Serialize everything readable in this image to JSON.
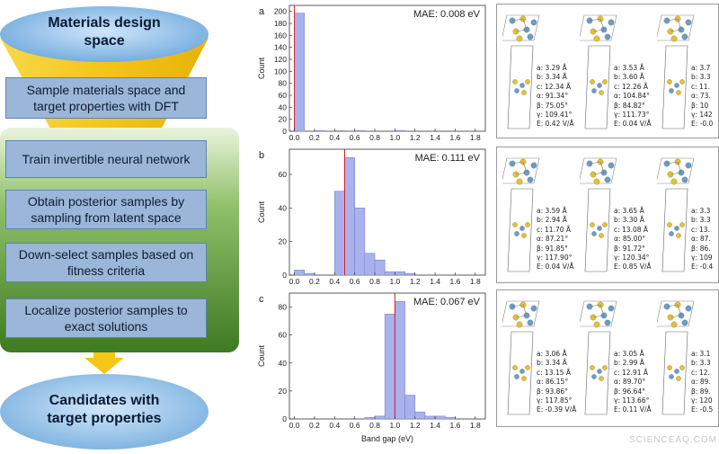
{
  "workflow": {
    "top_label": "Materials design space",
    "steps": [
      "Sample materials space and target properties with DFT",
      "Train invertible neural network",
      "Obtain posterior samples by sampling from latent space",
      "Down-select samples based on fitness criteria",
      "Localize posterior samples to exact solutions"
    ],
    "bottom_label": "Candidates with target properties"
  },
  "chart_data": [
    {
      "type": "bar",
      "panel_label": "a",
      "annotation": "MAE: 0.008 eV",
      "xlabel": "",
      "ylabel": "Count",
      "xlim": [
        -0.05,
        1.9
      ],
      "ylim": [
        0,
        210
      ],
      "xticks": [
        "0.0",
        "0.2",
        "0.4",
        "0.6",
        "0.8",
        "1.0",
        "1.2",
        "1.4",
        "1.6",
        "1.8"
      ],
      "yticks": [
        "0",
        "20",
        "40",
        "60",
        "80",
        "100",
        "120",
        "140",
        "160",
        "180",
        "200"
      ],
      "bin_width": 0.1,
      "bins": [
        0.0,
        0.1,
        0.2,
        0.3,
        0.4,
        0.5,
        0.6,
        0.7,
        0.8,
        0.9,
        1.0,
        1.1,
        1.2
      ],
      "values": [
        197,
        0,
        1,
        0,
        1,
        0,
        1,
        0,
        0,
        0,
        1,
        0,
        0
      ],
      "target": 0.0
    },
    {
      "type": "bar",
      "panel_label": "b",
      "annotation": "MAE: 0.111 eV",
      "xlabel": "",
      "ylabel": "Count",
      "xlim": [
        -0.05,
        1.9
      ],
      "ylim": [
        0,
        75
      ],
      "xticks": [
        "0.0",
        "0.2",
        "0.4",
        "0.6",
        "0.8",
        "1.0",
        "1.2",
        "1.4",
        "1.6",
        "1.8"
      ],
      "yticks": [
        "0",
        "20",
        "40",
        "60"
      ],
      "bin_width": 0.1,
      "bins": [
        0.0,
        0.1,
        0.2,
        0.3,
        0.4,
        0.5,
        0.6,
        0.7,
        0.8,
        0.9,
        1.0,
        1.1,
        1.2
      ],
      "values": [
        3,
        1,
        0,
        0,
        50,
        70,
        40,
        13,
        9,
        2,
        2,
        1,
        0
      ],
      "target": 0.5
    },
    {
      "type": "bar",
      "panel_label": "c",
      "annotation": "MAE: 0.067 eV",
      "xlabel": "Band gap (eV)",
      "ylabel": "Count",
      "xlim": [
        -0.05,
        1.9
      ],
      "ylim": [
        0,
        90
      ],
      "xticks": [
        "0.0",
        "0.2",
        "0.4",
        "0.6",
        "0.8",
        "1.0",
        "1.2",
        "1.4",
        "1.6",
        "1.8"
      ],
      "yticks": [
        "0",
        "20",
        "40",
        "60",
        "80"
      ],
      "bin_width": 0.1,
      "bins": [
        0.7,
        0.8,
        0.9,
        1.0,
        1.1,
        1.2,
        1.3,
        1.4,
        1.5
      ],
      "values": [
        1,
        2,
        75,
        84,
        17,
        5,
        2,
        2,
        1
      ],
      "target": 1.0
    }
  ],
  "structures": [
    [
      {
        "a": "a: 3.29 Å",
        "b": "b: 3.34 Å",
        "c": "c: 12.34 Å",
        "alpha": "α: 91.34°",
        "beta": "β: 75.05°",
        "gamma": "γ: 109.41°",
        "E": "E: 0.42 V/Å"
      },
      {
        "a": "a: 3.53 Å",
        "b": "b: 3.60 Å",
        "c": "c: 12.26 Å",
        "alpha": "α: 104.84°",
        "beta": "β: 84.82°",
        "gamma": "γ: 111.73°",
        "E": "E: 0.04 V/Å"
      },
      {
        "a": "a: 3.7",
        "b": "b: 3.3",
        "c": "c: 11.",
        "alpha": "α: 73.",
        "beta": "β: 10",
        "gamma": "γ: 142",
        "E": "E: -0.0"
      }
    ],
    [
      {
        "a": "a: 3.59 Å",
        "b": "b: 2.94 Å",
        "c": "c: 11.70 Å",
        "alpha": "α: 87.21°",
        "beta": "β: 91.85°",
        "gamma": "γ: 117.90°",
        "E": "E: 0.04 V/Å"
      },
      {
        "a": "a: 3.65 Å",
        "b": "b: 3.30 Å",
        "c": "c: 13.08 Å",
        "alpha": "α: 85.00°",
        "beta": "β: 91.72°",
        "gamma": "γ: 120.34°",
        "E": "E: 0.85 V/Å"
      },
      {
        "a": "a: 3.3",
        "b": "b: 3.3",
        "c": "c: 13.",
        "alpha": "α: 87.",
        "beta": "β: 86.",
        "gamma": "γ: 109",
        "E": "E: -0.4"
      }
    ],
    [
      {
        "a": "a: 3.06 Å",
        "b": "b: 3.34 Å",
        "c": "c: 13.15 Å",
        "alpha": "α: 86.15°",
        "beta": "β: 93.86°",
        "gamma": "γ: 117.85°",
        "E": "E: -0.39 V/Å"
      },
      {
        "a": "a: 3.05 Å",
        "b": "b: 2.99 Å",
        "c": "c: 12.91 Å",
        "alpha": "α: 89.70°",
        "beta": "β: 96.64°",
        "gamma": "γ: 113.66°",
        "E": "E: 0.11 V/Å"
      },
      {
        "a": "a: 3.1",
        "b": "b: 3.3",
        "c": "c: 12.",
        "alpha": "α: 89.",
        "beta": "β: 89.",
        "gamma": "γ: 120",
        "E": "E: -0.5"
      }
    ]
  ],
  "colors": {
    "funnel": "#f5c518",
    "top_ellipse": "#8fc0e8",
    "green_panel": "#4f8a2f",
    "step_box": "#9bb6d8",
    "arrow": "#f5c518",
    "bars": "#aab2ee",
    "target_line": "#d81e1e",
    "atom_mo": "#6a9ec9",
    "atom_s": "#e8c22c"
  },
  "watermark": "SCIENCEAQ.COM"
}
